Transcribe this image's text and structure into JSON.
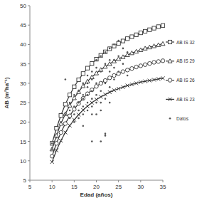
{
  "chart_data": {
    "type": "line",
    "x_label": "Edad (años)",
    "y_label": "AB (m²ha⁻¹)",
    "x": [
      10,
      11,
      12,
      13,
      14,
      15,
      16,
      17,
      18,
      19,
      20,
      21,
      22,
      23,
      24,
      25,
      26,
      27,
      28,
      29,
      30,
      31,
      32,
      33,
      34,
      35
    ],
    "series": [
      {
        "name": "AB IS 32",
        "color": "#333333",
        "marker": "square",
        "values": [
          14.5,
          18.4,
          21.7,
          24.6,
          27.0,
          29.1,
          30.9,
          32.5,
          33.9,
          35.1,
          36.2,
          37.2,
          38.1,
          38.9,
          39.6,
          40.3,
          40.9,
          41.5,
          42.0,
          42.5,
          43.0,
          43.4,
          43.8,
          44.2,
          44.6,
          44.9
        ]
      },
      {
        "name": "AB IS 29",
        "color": "#333333",
        "marker": "triangle",
        "values": [
          13.0,
          16.5,
          19.6,
          22.1,
          24.3,
          26.2,
          27.8,
          29.3,
          30.5,
          31.6,
          32.6,
          33.5,
          34.3,
          35.0,
          35.7,
          36.3,
          36.8,
          37.3,
          37.8,
          38.2,
          38.6,
          39.0,
          39.3,
          39.6,
          39.9,
          40.2
        ]
      },
      {
        "name": "AB IS 26",
        "color": "#333333",
        "marker": "circle",
        "values": [
          11.2,
          14.5,
          17.3,
          19.6,
          21.6,
          23.3,
          24.8,
          26.1,
          27.3,
          28.3,
          29.2,
          30.0,
          30.7,
          31.4,
          32.0,
          32.5,
          33.0,
          33.4,
          33.8,
          34.2,
          34.5,
          34.8,
          35.1,
          35.4,
          35.6,
          35.8
        ]
      },
      {
        "name": "AB IS 23",
        "color": "#333333",
        "marker": "x",
        "values": [
          9.7,
          12.7,
          15.2,
          17.3,
          19.1,
          20.6,
          21.9,
          23.1,
          24.1,
          25.0,
          25.8,
          26.5,
          27.1,
          27.7,
          28.2,
          28.6,
          29.0,
          29.4,
          29.7,
          30.0,
          30.3,
          30.5,
          30.7,
          30.9,
          31.1,
          31.3
        ]
      },
      {
        "name": "Datos",
        "type": "scatter",
        "color": "#555555",
        "marker": "point",
        "x": [
          10,
          10,
          11,
          12,
          13,
          13,
          14,
          14,
          14,
          15,
          15,
          15,
          15,
          16,
          16,
          16,
          16,
          17,
          17,
          17,
          17,
          17,
          17,
          18,
          18,
          18,
          18,
          18,
          18,
          19,
          19,
          19,
          19,
          19,
          19,
          19,
          20,
          20,
          20,
          20,
          20,
          20,
          21,
          21,
          21,
          21,
          21,
          21,
          22,
          22,
          22,
          22,
          22,
          22,
          23,
          23,
          23,
          23,
          23,
          24,
          24,
          24,
          24,
          25,
          25,
          25,
          26,
          26,
          27,
          27
        ],
        "values": [
          14.5,
          13,
          16,
          20,
          31,
          22,
          25,
          21,
          23,
          27,
          24,
          22,
          20,
          28,
          25,
          23,
          21,
          30,
          27,
          26,
          24,
          22,
          19,
          32,
          29,
          27,
          25,
          23,
          30,
          33,
          31,
          28,
          26,
          24,
          22,
          15,
          34,
          30,
          27,
          25,
          22,
          36,
          37,
          33,
          28,
          25,
          15,
          23,
          38,
          35,
          30,
          26,
          17,
          16.5,
          39,
          36,
          33,
          29,
          25,
          40,
          36,
          34,
          31,
          41,
          37,
          33,
          39,
          35,
          38,
          32
        ]
      }
    ],
    "xlim": [
      5,
      35
    ],
    "xticks": [
      5,
      10,
      15,
      20,
      25,
      30,
      35
    ],
    "ylim": [
      5,
      50
    ],
    "yticks": [
      5,
      10,
      15,
      20,
      25,
      30,
      35,
      40,
      45,
      50
    ],
    "legend": "right",
    "grid": false
  }
}
